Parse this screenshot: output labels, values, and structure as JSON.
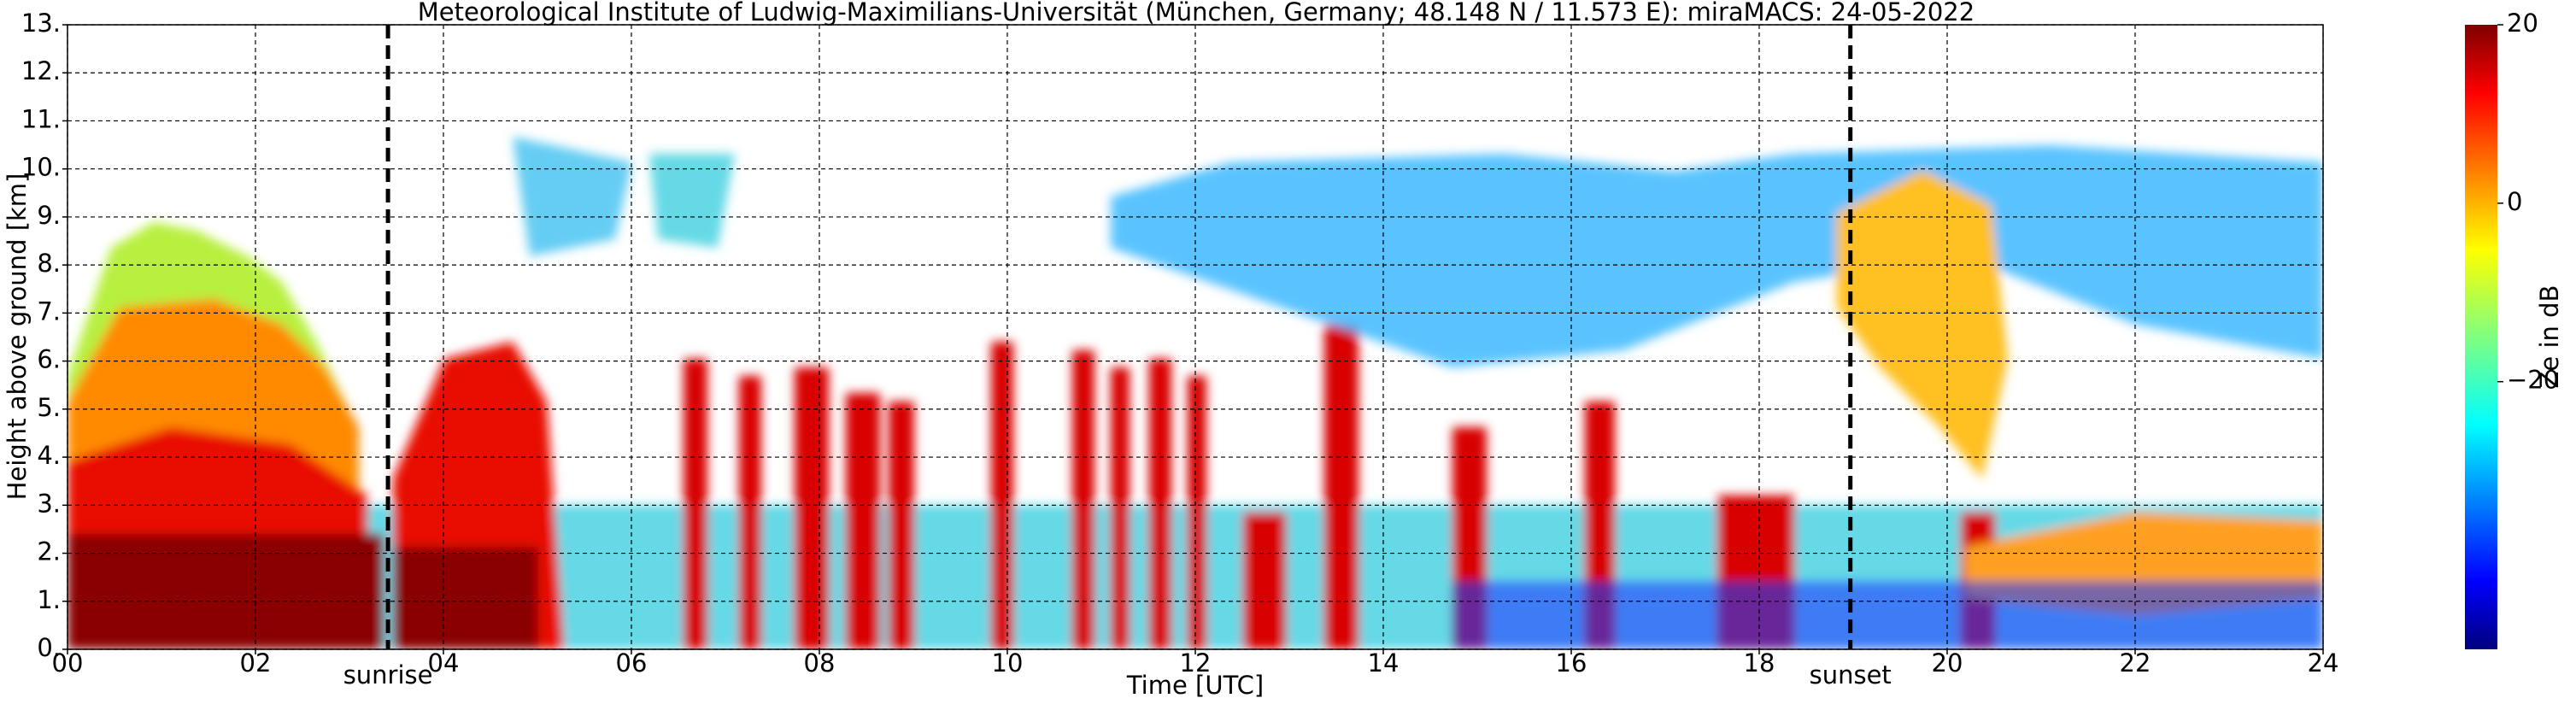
{
  "chart_data": {
    "type": "heatmap",
    "title": "Meteorological Institute of Ludwig-Maximilians-Universität (München, Germany; 48.148 N / 11.573 E):    miraMACS: 24-05-2022",
    "xlabel": "Time [UTC]",
    "ylabel": "Height above ground [km]",
    "xlim": [
      0,
      24
    ],
    "xticks": [
      {
        "value": 0,
        "label": "00"
      },
      {
        "value": 2,
        "label": "02"
      },
      {
        "value": 4,
        "label": "04"
      },
      {
        "value": 6,
        "label": "06"
      },
      {
        "value": 8,
        "label": "08"
      },
      {
        "value": 10,
        "label": "10"
      },
      {
        "value": 12,
        "label": "12"
      },
      {
        "value": 14,
        "label": "14"
      },
      {
        "value": 16,
        "label": "16"
      },
      {
        "value": 18,
        "label": "18"
      },
      {
        "value": 20,
        "label": "20"
      },
      {
        "value": 22,
        "label": "22"
      },
      {
        "value": 24,
        "label": "24"
      }
    ],
    "ylim": [
      0,
      13
    ],
    "yticks": [
      {
        "value": 0,
        "label": "0."
      },
      {
        "value": 1,
        "label": "1."
      },
      {
        "value": 2,
        "label": "2."
      },
      {
        "value": 3,
        "label": "3."
      },
      {
        "value": 4,
        "label": "4."
      },
      {
        "value": 5,
        "label": "5."
      },
      {
        "value": 6,
        "label": "6."
      },
      {
        "value": 7,
        "label": "7."
      },
      {
        "value": 8,
        "label": "8."
      },
      {
        "value": 9,
        "label": "9."
      },
      {
        "value": 10,
        "label": "10."
      },
      {
        "value": 11,
        "label": "11."
      },
      {
        "value": 12,
        "label": "12."
      },
      {
        "value": 13,
        "label": "13."
      }
    ],
    "grid": true,
    "colorbar": {
      "label": "Ze in dB",
      "colormap": "jet",
      "lim": [
        -50,
        20
      ],
      "ticks": [
        {
          "value": 20,
          "label": "20"
        },
        {
          "value": 0,
          "label": "0"
        },
        {
          "value": -20,
          "label": "−20"
        }
      ]
    },
    "annotations": [
      {
        "text": "sunrise",
        "x": 3.41
      },
      {
        "text": "sunset",
        "x": 18.97
      }
    ]
  }
}
